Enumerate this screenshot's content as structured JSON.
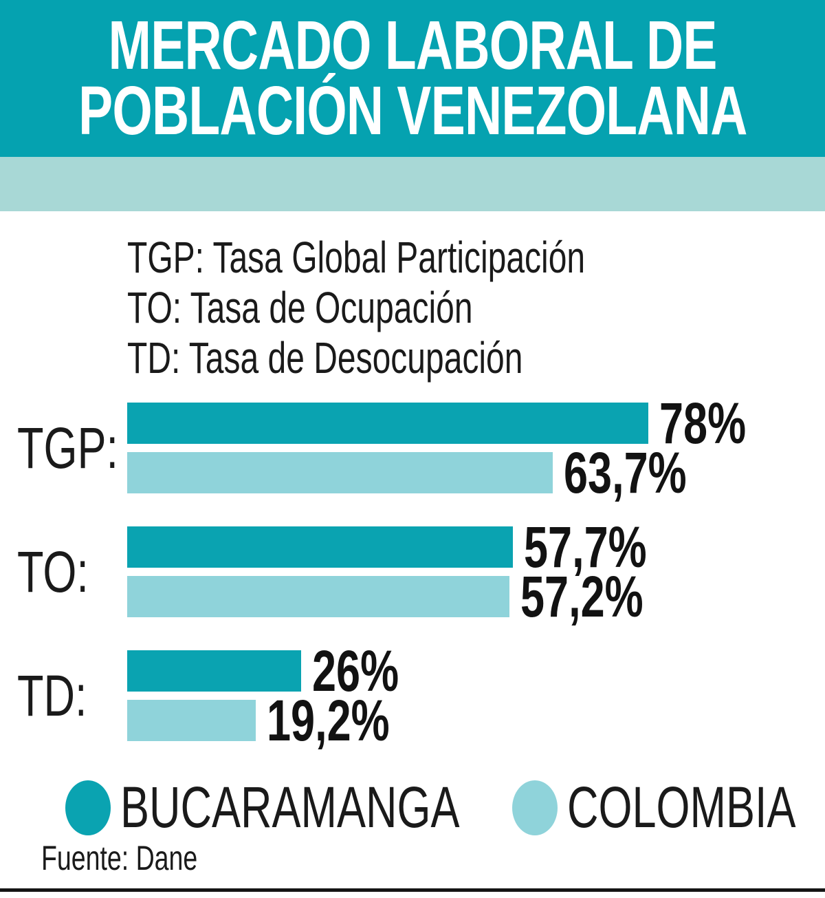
{
  "title": {
    "line1": "MERCADO LABORAL DE",
    "line2": "POBLACIÓN VENEZOLANA"
  },
  "definitions": [
    "TGP: Tasa Global Participación",
    "TO: Tasa de Ocupación",
    "TD: Tasa de Desocupación"
  ],
  "legend": [
    {
      "name": "BUCARAMANGA",
      "color": "#0aa3b1"
    },
    {
      "name": "COLOMBIA",
      "color": "#8fd3da"
    }
  ],
  "source": "Fuente: Dane",
  "colors": {
    "header_bg": "#05a2b0",
    "band_bg": "#a8d8d6",
    "bucaramanga_bar": "#0aa3b1",
    "colombia_bar": "#8fd3da",
    "text": "#1a1a1a",
    "title_text": "#ffffff"
  },
  "chart_data": {
    "type": "bar",
    "orientation": "horizontal",
    "title": "MERCADO LABORAL DE POBLACIÓN VENEZOLANA",
    "categories": [
      "TGP:",
      "TO:",
      "TD:"
    ],
    "series": [
      {
        "name": "BUCARAMANGA",
        "values": [
          78,
          57.7,
          26
        ],
        "labels": [
          "78%",
          "57,7%",
          "26%"
        ],
        "color": "#0aa3b1"
      },
      {
        "name": "COLOMBIA",
        "values": [
          63.7,
          57.2,
          19.2
        ],
        "labels": [
          "63,7%",
          "57,2%",
          "19,2%"
        ],
        "color": "#8fd3da"
      }
    ],
    "value_suffix": "%",
    "decimal_separator": ",",
    "xlim": [
      0,
      78
    ],
    "grid": false,
    "legend_position": "bottom",
    "source": "Fuente: Dane"
  }
}
